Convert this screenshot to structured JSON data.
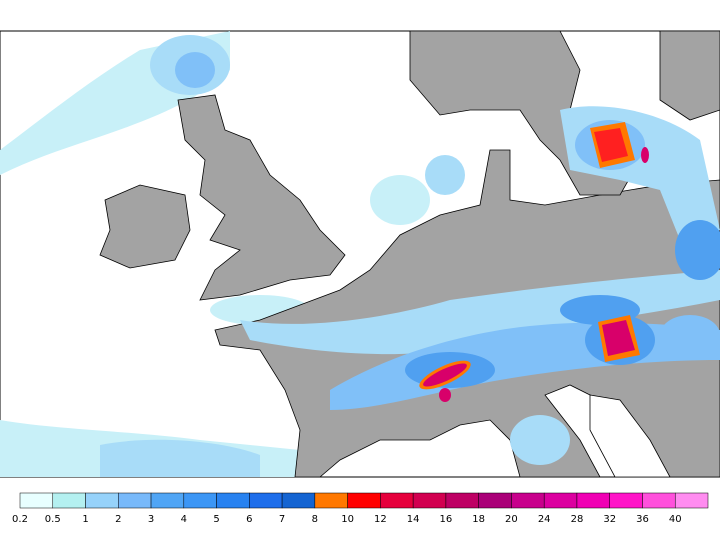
{
  "legend": {
    "ticks": [
      0.2,
      0.5,
      1,
      2,
      3,
      4,
      5,
      6,
      7,
      8,
      10,
      12,
      14,
      16,
      18,
      20,
      24,
      28,
      32,
      36,
      40
    ],
    "colors": [
      "#e8ffff",
      "#b4f0f0",
      "#96d2fa",
      "#78b9fa",
      "#50a5f5",
      "#3c96f5",
      "#2882f0",
      "#1e6eeb",
      "#1464d2",
      "#ff7800",
      "#ff0000",
      "#e6003c",
      "#d20050",
      "#be0064",
      "#aa0078",
      "#c8008c",
      "#dc00a0",
      "#f000b4",
      "#ff14c8",
      "#ff50dc",
      "#ff8cf0"
    ]
  }
}
